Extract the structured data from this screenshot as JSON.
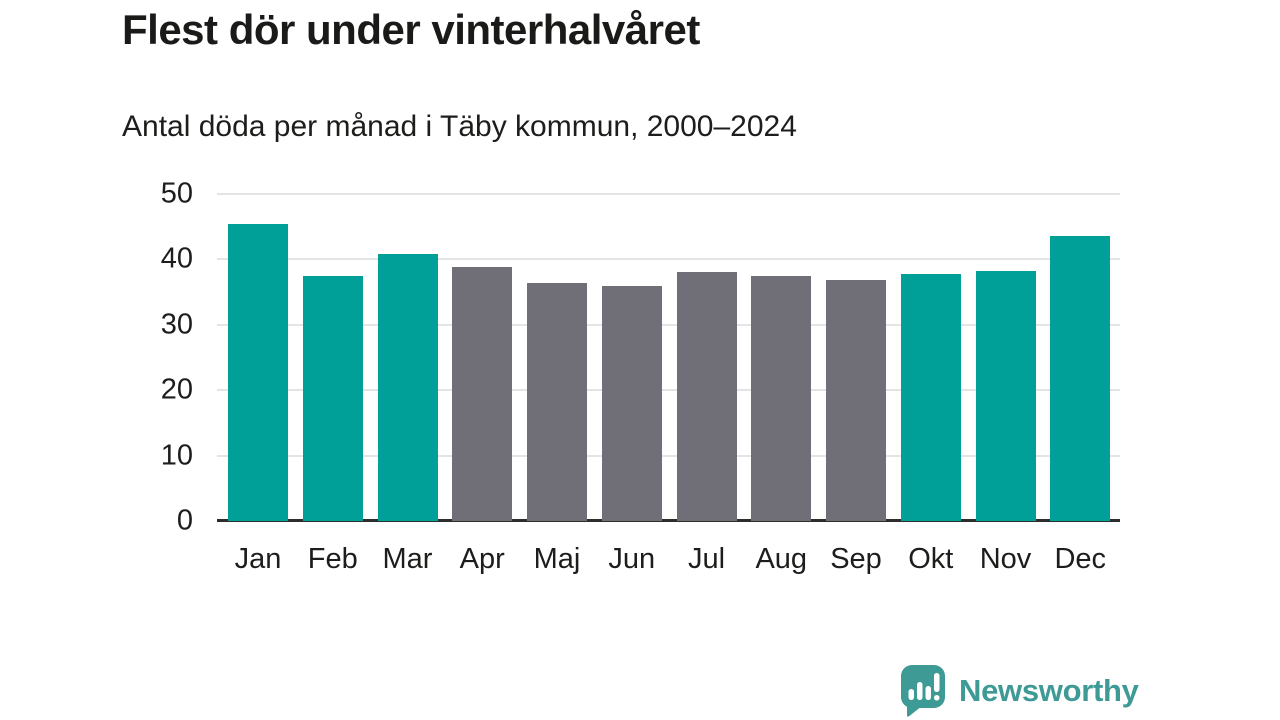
{
  "page": {
    "background": "#ffffff"
  },
  "chart_data": {
    "type": "bar",
    "title": "Flest dör under vinterhalvåret",
    "subtitle": "Antal döda per månad i Täby kommun, 2000–2024",
    "categories": [
      "Jan",
      "Feb",
      "Mar",
      "Apr",
      "Maj",
      "Jun",
      "Jul",
      "Aug",
      "Sep",
      "Okt",
      "Nov",
      "Dec"
    ],
    "values": [
      45.4,
      37.4,
      40.9,
      38.9,
      36.4,
      35.9,
      38.0,
      37.4,
      36.8,
      37.8,
      38.2,
      43.6
    ],
    "bar_colors": [
      "#00a099",
      "#00a099",
      "#00a099",
      "#706f77",
      "#706f77",
      "#706f77",
      "#706f77",
      "#706f77",
      "#706f77",
      "#00a099",
      "#00a099",
      "#00a099"
    ],
    "xlabel": "",
    "ylabel": "",
    "ylim": [
      0,
      50
    ],
    "yticks": [
      0,
      10,
      20,
      30,
      40,
      50
    ],
    "grid": true,
    "legend_position": "none",
    "highlight_color": "#00a099",
    "base_color": "#706f77",
    "gridline_color": "#e4e4e4",
    "axis_color": "#2d2d2b",
    "text_color": "#1d1d1b"
  },
  "branding": {
    "logo_text": "Newsworthy",
    "logo_color": "#3d9a95",
    "logo_icon": "bar-chart-speech-bubble-icon"
  }
}
